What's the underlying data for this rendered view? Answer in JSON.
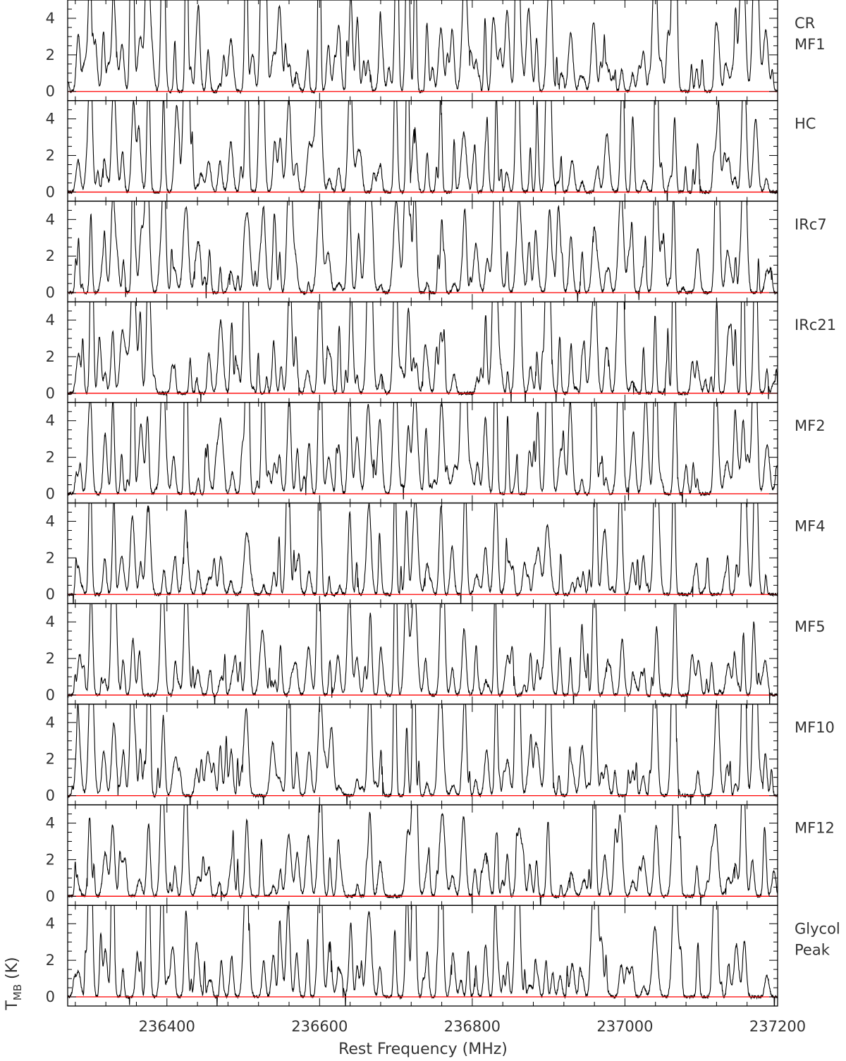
{
  "chart_data": {
    "type": "line",
    "title": "",
    "xlabel": "Rest Frequency (MHz)",
    "ylabel": "T",
    "ylabel_sub": "MB",
    "ylabel_unit": " (K)",
    "xlim": [
      236270,
      237200
    ],
    "ylim": [
      -0.5,
      5.0
    ],
    "x_ticks": [
      236400,
      236600,
      236800,
      237000,
      237200
    ],
    "y_ticks": [
      0,
      2,
      4
    ],
    "baseline": 0,
    "colors": {
      "spectrum": "#000000",
      "baseline": "#ff0000",
      "frame": "#000000"
    },
    "panels": [
      {
        "label_lines": [
          "CR",
          "MF1"
        ],
        "density": 1.5,
        "seed": 11
      },
      {
        "label_lines": [
          "HC"
        ],
        "density": 1.0,
        "seed": 23
      },
      {
        "label_lines": [
          "IRc7"
        ],
        "density": 1.0,
        "seed": 37
      },
      {
        "label_lines": [
          "IRc21"
        ],
        "density": 1.2,
        "seed": 41
      },
      {
        "label_lines": [
          "MF2"
        ],
        "density": 1.4,
        "seed": 53
      },
      {
        "label_lines": [
          "MF4"
        ],
        "density": 0.8,
        "seed": 67
      },
      {
        "label_lines": [
          "MF5"
        ],
        "density": 0.8,
        "seed": 71
      },
      {
        "label_lines": [
          "MF10"
        ],
        "density": 1.0,
        "seed": 83
      },
      {
        "label_lines": [
          "MF12"
        ],
        "density": 0.7,
        "seed": 97
      },
      {
        "label_lines": [
          "Glycol",
          "Peak"
        ],
        "density": 1.0,
        "seed": 101
      }
    ],
    "strong_lines_mhz": [
      236300,
      236330,
      236355,
      236375,
      236395,
      236425,
      236505,
      236525,
      236560,
      236600,
      236640,
      236665,
      236700,
      236715,
      236725,
      236760,
      236790,
      236830,
      236860,
      236900,
      236960,
      236995,
      237040,
      237065,
      237120,
      237155,
      237170
    ],
    "weak_lines_mhz": [
      236285,
      236318,
      236342,
      236365,
      236410,
      236440,
      236455,
      236470,
      236485,
      236540,
      236548,
      236570,
      236585,
      236612,
      236625,
      236650,
      236680,
      236740,
      236775,
      236805,
      236818,
      236845,
      236875,
      236885,
      236915,
      236930,
      236945,
      236975,
      237010,
      237025,
      237095,
      237135,
      237145,
      237185
    ]
  }
}
